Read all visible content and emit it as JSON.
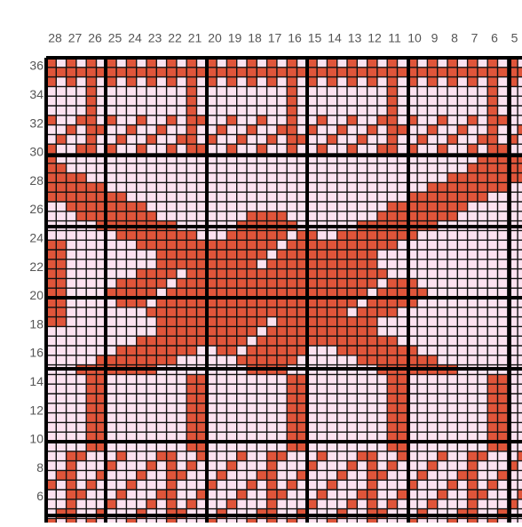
{
  "column_labels": [
    "28",
    "27",
    "26",
    "25",
    "24",
    "23",
    "22",
    "21",
    "20",
    "19",
    "18",
    "17",
    "16",
    "15",
    "14",
    "13",
    "12",
    "11",
    "10",
    "9",
    "8",
    "7",
    "6",
    "5"
  ],
  "row_labels": [
    "36",
    "34",
    "32",
    "30",
    "28",
    "26",
    "24",
    "22",
    "20",
    "18",
    "16",
    "14",
    "12",
    "10",
    "8",
    "6"
  ]
}
